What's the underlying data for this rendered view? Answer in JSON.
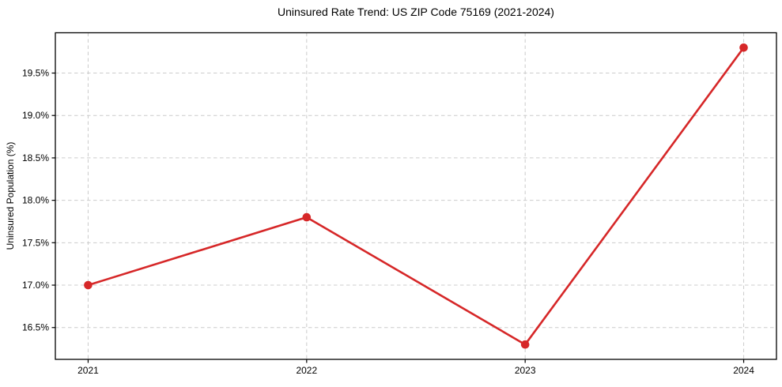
{
  "chart_data": {
    "type": "line",
    "title": "Uninsured Rate Trend: US ZIP Code 75169 (2021-2024)",
    "xlabel": "",
    "ylabel": "Uninsured Population (%)",
    "x": [
      2021,
      2022,
      2023,
      2024
    ],
    "x_tick_labels": [
      "2021",
      "2022",
      "2023",
      "2024"
    ],
    "values": [
      17.0,
      17.8,
      16.3,
      19.8
    ],
    "y_ticks": [
      16.5,
      17.0,
      17.5,
      18.0,
      18.5,
      19.0,
      19.5
    ],
    "y_tick_labels": [
      "16.5%",
      "17.0%",
      "17.5%",
      "18.0%",
      "18.5%",
      "19.0%",
      "19.5%"
    ],
    "xlim": [
      2020.85,
      2024.15
    ],
    "ylim": [
      16.125,
      19.975
    ],
    "grid": true,
    "legend": "none",
    "colors": {
      "line": "#d62728",
      "marker": "#d62728",
      "grid": "#cccccc",
      "spine": "#000000",
      "text": "#000000",
      "background": "#ffffff"
    }
  }
}
